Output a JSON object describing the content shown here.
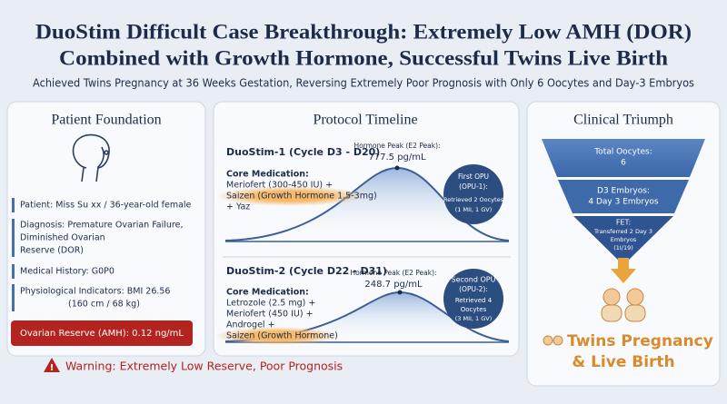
{
  "header": {
    "title_lines": [
      "DuoStim Difficult Case Breakthrough: Extremely Low AMH (DOR)",
      "Combined with Growth Hormone, Successful Twins Live Birth"
    ],
    "subtitle": "Achieved Twins Pregnancy at 36 Weeks Gestation, Reversing Extremely Poor Prognosis with Only 6 Oocytes and Day-3 Embryos"
  },
  "patient": {
    "heading": "Patient Foundation",
    "items": [
      [
        "Patient: Miss Su xx / 36-year-old female"
      ],
      [
        "Diagnosis: Premature Ovarian Failure,",
        "Diminished Ovarian",
        "Reserve (DOR)"
      ],
      [
        "Medical History: G0P0"
      ],
      [
        "Physiological Indicators: BMI 26.56",
        "(160 cm / 68 kg)"
      ]
    ],
    "amh": "Ovarian Reserve (AMH): 0.12 ng/mL",
    "warning": "Warning: Extremely Low Reserve, Poor Prognosis"
  },
  "timeline": {
    "heading": "Protocol Timeline",
    "cycles": [
      {
        "name": "DuoStim-1 (Cycle D3 - D20)",
        "peak_label": "Hormone Peak (E2 Peak):",
        "peak_value": "777.5 pg/mL",
        "medication_heading": "Core Medication:",
        "medications": [
          "Meriofert (300-450 IU) +",
          "Saizen (Growth Hormone 1.5-3mg)",
          "+ Yaz"
        ],
        "opu": [
          "First OPU",
          "(OPU-1):",
          "Retrieved 2 Oocytes",
          "(1 MII, 1 GV)"
        ]
      },
      {
        "name": "DuoStim-2 (Cycle D22 - D31)",
        "peak_label": "Hormone Peak (E2 Peak):",
        "peak_value": "248.7 pg/mL",
        "medication_heading": "Core Medication:",
        "medications": [
          "Letrozole (2.5 mg) +",
          "Meriofert (450 IU) +",
          "Androgel +",
          "Saizen (Growth Hormone)"
        ],
        "opu": [
          "Second OPU",
          "(OPU-2):",
          "Retrieved 4",
          "Oocytes",
          "(3 MII, 1 GV)"
        ]
      }
    ]
  },
  "triumph": {
    "heading": "Clinical Triumph",
    "funnel": [
      [
        "Total Oocytes:",
        "6"
      ],
      [
        "D3 Embryos:",
        "4 Day 3 Embryos"
      ],
      [
        "FET:",
        "Transferred 2 Day 3",
        "Embryos",
        "(1I/19)"
      ]
    ],
    "result": [
      "Twins Pregnancy",
      "& Live Birth"
    ]
  }
}
